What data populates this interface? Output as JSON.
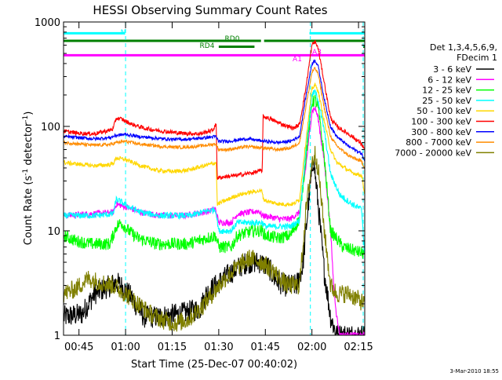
{
  "chart_data": {
    "type": "line",
    "title": "HESSI Observing Summary Count Rates",
    "xlabel": "Start Time (25-Dec-07 00:40:02)",
    "ylabel": "Count Rate (s⁻¹ detector⁻¹)",
    "ylabel_main": "Count Rate (s",
    "ylabel_sup1": "-1",
    "ylabel_mid": " detector",
    "ylabel_sup2": "-1",
    "ylabel_end": ")",
    "y_scale": "log",
    "xlim": [
      40.03,
      137.0
    ],
    "ylim": [
      1,
      1000
    ],
    "x_ticks": [
      {
        "v": 45,
        "label": "00:45"
      },
      {
        "v": 60,
        "label": "01:00"
      },
      {
        "v": 75,
        "label": "01:15"
      },
      {
        "v": 90,
        "label": "01:30"
      },
      {
        "v": 105,
        "label": "01:45"
      },
      {
        "v": 120,
        "label": "02:00"
      },
      {
        "v": 135,
        "label": "02:15"
      }
    ],
    "y_ticks": [
      {
        "v": 1,
        "label": "1"
      },
      {
        "v": 10,
        "label": "10"
      },
      {
        "v": 100,
        "label": "100"
      },
      {
        "v": 1000,
        "label": "1000"
      }
    ],
    "legend_header": [
      "Det 1,3,4,5,6,9,",
      "FDecim 1"
    ],
    "legend_placement": "right",
    "footer_date": "3-Mar-2010 18:55",
    "series": [
      {
        "name": "3 - 6 keV",
        "color": "#000000",
        "noise": 0.22,
        "pts": [
          [
            40.1,
            1.5
          ],
          [
            46,
            1.6
          ],
          [
            50,
            2.5
          ],
          [
            57,
            3.2
          ],
          [
            58.5,
            3
          ],
          [
            62,
            2.3
          ],
          [
            64,
            1.8
          ],
          [
            66,
            1.5
          ],
          [
            70,
            1.5
          ],
          [
            78,
            1.6
          ],
          [
            84,
            1.8
          ],
          [
            86,
            2.5
          ],
          [
            89,
            3
          ],
          [
            94,
            4
          ],
          [
            99,
            5
          ],
          [
            103,
            5
          ],
          [
            106,
            4.5
          ],
          [
            108,
            3.5
          ],
          [
            111,
            3
          ],
          [
            115,
            3
          ],
          [
            117,
            4.5
          ],
          [
            119,
            20
          ],
          [
            120.5,
            50
          ],
          [
            122,
            18
          ],
          [
            124,
            4
          ],
          [
            126,
            1.5
          ],
          [
            128,
            1
          ],
          [
            137,
            1
          ]
        ]
      },
      {
        "name": "6 - 12 keV",
        "color": "#ff00ff",
        "noise": 0.06,
        "pts": [
          [
            40.1,
            14
          ],
          [
            56,
            15
          ],
          [
            57,
            18
          ],
          [
            60,
            17
          ],
          [
            65,
            15
          ],
          [
            71,
            14
          ],
          [
            79,
            14
          ],
          [
            85,
            15
          ],
          [
            89,
            16
          ],
          [
            90,
            12
          ],
          [
            94,
            12
          ],
          [
            96,
            14.5
          ],
          [
            103,
            15.5
          ],
          [
            104,
            14
          ],
          [
            110,
            13
          ],
          [
            113,
            13
          ],
          [
            116,
            15
          ],
          [
            118,
            40
          ],
          [
            120,
            140
          ],
          [
            121,
            150
          ],
          [
            122,
            120
          ],
          [
            124,
            45
          ],
          [
            126,
            10
          ],
          [
            127,
            3
          ],
          [
            128,
            1.5
          ],
          [
            129,
            1
          ],
          [
            137,
            1
          ]
        ]
      },
      {
        "name": "12 - 25 keV",
        "color": "#00ff00",
        "noise": 0.12,
        "pts": [
          [
            40.1,
            9
          ],
          [
            44,
            8
          ],
          [
            49,
            7.5
          ],
          [
            51,
            7.5
          ],
          [
            55,
            7.5
          ],
          [
            57,
            11
          ],
          [
            58.5,
            12
          ],
          [
            61,
            10
          ],
          [
            64,
            8.5
          ],
          [
            70,
            7.5
          ],
          [
            80,
            7.5
          ],
          [
            86,
            8.5
          ],
          [
            89,
            9
          ],
          [
            90,
            7
          ],
          [
            94,
            7
          ],
          [
            96,
            9
          ],
          [
            101,
            10
          ],
          [
            104,
            10
          ],
          [
            105,
            9
          ],
          [
            109,
            8.5
          ],
          [
            113,
            9
          ],
          [
            116,
            13
          ],
          [
            118,
            50
          ],
          [
            120,
            170
          ],
          [
            121,
            180
          ],
          [
            122,
            150
          ],
          [
            124,
            50
          ],
          [
            126,
            10
          ],
          [
            130,
            7
          ],
          [
            137,
            6
          ]
        ]
      },
      {
        "name": "25 - 50 keV",
        "color": "#00ffff",
        "noise": 0.06,
        "pts": [
          [
            40.1,
            14
          ],
          [
            44,
            14
          ],
          [
            50,
            14
          ],
          [
            56,
            14.5
          ],
          [
            57,
            20
          ],
          [
            58.5,
            19
          ],
          [
            61,
            17
          ],
          [
            65,
            15
          ],
          [
            71,
            14
          ],
          [
            81,
            14
          ],
          [
            86,
            15.5
          ],
          [
            89,
            16
          ],
          [
            90,
            10
          ],
          [
            94,
            10
          ],
          [
            96,
            12
          ],
          [
            101,
            12
          ],
          [
            104,
            12
          ],
          [
            105,
            11
          ],
          [
            109,
            11
          ],
          [
            113,
            11
          ],
          [
            116,
            12.5
          ],
          [
            118,
            60
          ],
          [
            120,
            200
          ],
          [
            121,
            215
          ],
          [
            122,
            180
          ],
          [
            124,
            90
          ],
          [
            126,
            35
          ],
          [
            129,
            22
          ],
          [
            133,
            18
          ],
          [
            136,
            16
          ],
          [
            137,
            6
          ]
        ]
      },
      {
        "name": "50 - 100 keV",
        "color": "#ffd700",
        "noise": 0.04,
        "pts": [
          [
            40.1,
            45
          ],
          [
            50,
            42
          ],
          [
            55,
            43
          ],
          [
            56,
            44
          ],
          [
            57,
            50
          ],
          [
            60,
            48
          ],
          [
            65,
            42
          ],
          [
            70,
            38
          ],
          [
            75,
            37
          ],
          [
            80,
            38
          ],
          [
            84,
            41
          ],
          [
            88,
            44
          ],
          [
            89.2,
            45
          ],
          [
            89.5,
            18
          ],
          [
            93,
            20
          ],
          [
            96,
            22
          ],
          [
            102,
            24
          ],
          [
            104,
            24
          ],
          [
            104.4,
            20
          ],
          [
            106,
            19
          ],
          [
            110,
            18
          ],
          [
            114,
            18
          ],
          [
            116,
            20
          ],
          [
            118,
            70
          ],
          [
            120,
            230
          ],
          [
            121,
            250
          ],
          [
            122,
            220
          ],
          [
            124,
            110
          ],
          [
            126,
            60
          ],
          [
            128,
            45
          ],
          [
            133,
            36
          ],
          [
            136,
            34
          ],
          [
            136.5,
            28
          ],
          [
            137,
            22
          ]
        ]
      },
      {
        "name": "100 - 300 keV",
        "color": "#ff0000",
        "noise": 0.04,
        "pts": [
          [
            40.1,
            90
          ],
          [
            45,
            86
          ],
          [
            50,
            85
          ],
          [
            55,
            92
          ],
          [
            56,
            95
          ],
          [
            57,
            120
          ],
          [
            58.5,
            118
          ],
          [
            62,
            105
          ],
          [
            66,
            96
          ],
          [
            72,
            90
          ],
          [
            78,
            86
          ],
          [
            84,
            85
          ],
          [
            88,
            92
          ],
          [
            89.2,
            105
          ],
          [
            89.5,
            32
          ],
          [
            92,
            33
          ],
          [
            96,
            34
          ],
          [
            101,
            36
          ],
          [
            104,
            38
          ],
          [
            104.3,
            125
          ],
          [
            106,
            120
          ],
          [
            110,
            106
          ],
          [
            114,
            96
          ],
          [
            116,
            104
          ],
          [
            118,
            230
          ],
          [
            120,
            600
          ],
          [
            121,
            650
          ],
          [
            122,
            560
          ],
          [
            124,
            260
          ],
          [
            126,
            120
          ],
          [
            128,
            100
          ],
          [
            133,
            80
          ],
          [
            136,
            68
          ],
          [
            137,
            60
          ]
        ]
      },
      {
        "name": "300 - 800 keV",
        "color": "#0000ff",
        "noise": 0.03,
        "pts": [
          [
            40.1,
            80
          ],
          [
            45,
            78
          ],
          [
            50,
            76
          ],
          [
            55,
            78
          ],
          [
            57,
            82
          ],
          [
            60,
            84
          ],
          [
            64,
            80
          ],
          [
            68,
            78
          ],
          [
            72,
            76
          ],
          [
            78,
            75
          ],
          [
            82,
            76
          ],
          [
            86,
            78
          ],
          [
            89,
            80
          ],
          [
            90,
            72
          ],
          [
            93,
            72
          ],
          [
            96,
            74
          ],
          [
            99,
            76
          ],
          [
            102,
            74
          ],
          [
            105,
            72
          ],
          [
            109,
            70
          ],
          [
            113,
            72
          ],
          [
            116,
            80
          ],
          [
            118,
            190
          ],
          [
            120,
            400
          ],
          [
            121,
            430
          ],
          [
            122,
            380
          ],
          [
            124,
            180
          ],
          [
            126,
            100
          ],
          [
            128,
            80
          ],
          [
            132,
            64
          ],
          [
            136,
            55
          ],
          [
            137,
            46
          ]
        ]
      },
      {
        "name": "800 - 7000 keV",
        "color": "#ff8c00",
        "noise": 0.03,
        "pts": [
          [
            40.1,
            70
          ],
          [
            45,
            68
          ],
          [
            50,
            66
          ],
          [
            55,
            67
          ],
          [
            57,
            70
          ],
          [
            60,
            72
          ],
          [
            64,
            68
          ],
          [
            68,
            66
          ],
          [
            72,
            64
          ],
          [
            78,
            63
          ],
          [
            82,
            64
          ],
          [
            86,
            66
          ],
          [
            89,
            68
          ],
          [
            90,
            60
          ],
          [
            93,
            60
          ],
          [
            96,
            62
          ],
          [
            99,
            64
          ],
          [
            102,
            63
          ],
          [
            105,
            62
          ],
          [
            109,
            60
          ],
          [
            113,
            62
          ],
          [
            116,
            70
          ],
          [
            118,
            150
          ],
          [
            120,
            330
          ],
          [
            121,
            360
          ],
          [
            122,
            320
          ],
          [
            124,
            150
          ],
          [
            126,
            80
          ],
          [
            128,
            65
          ],
          [
            132,
            52
          ],
          [
            136,
            46
          ],
          [
            137,
            40
          ]
        ]
      },
      {
        "name": "7000 - 20000 keV",
        "color": "#808000",
        "noise": 0.18,
        "pts": [
          [
            40.1,
            2.5
          ],
          [
            44,
            2.8
          ],
          [
            48,
            3.5
          ],
          [
            52,
            3.2
          ],
          [
            56,
            3
          ],
          [
            60,
            2.5
          ],
          [
            64,
            2
          ],
          [
            68,
            1.6
          ],
          [
            72,
            1.4
          ],
          [
            76,
            1.3
          ],
          [
            80,
            1.4
          ],
          [
            84,
            1.8
          ],
          [
            88,
            2.5
          ],
          [
            92,
            3.5
          ],
          [
            96,
            4.5
          ],
          [
            100,
            5.5
          ],
          [
            104,
            5
          ],
          [
            108,
            4
          ],
          [
            112,
            3
          ],
          [
            116,
            3
          ],
          [
            118,
            15
          ],
          [
            120,
            45
          ],
          [
            121,
            55
          ],
          [
            122,
            40
          ],
          [
            124,
            10
          ],
          [
            126,
            3
          ],
          [
            128,
            2.5
          ],
          [
            132,
            2.5
          ],
          [
            137,
            2
          ]
        ]
      }
    ],
    "flag_bars": [
      {
        "label": "N",
        "color": "#00ffff",
        "y": 780,
        "segments": [
          [
            40.1,
            59.8
          ],
          [
            119.2,
            137
          ]
        ]
      },
      {
        "label": "RD0",
        "color": "#008000",
        "y": 660,
        "segments": [
          [
            40.1,
            103.6
          ],
          [
            104.6,
            137
          ]
        ]
      },
      {
        "label": "RD4",
        "color": "#008000",
        "y": 580,
        "segments": [
          [
            90,
            101.5
          ],
          [
            136.5,
            137
          ]
        ]
      },
      {
        "label": "A1",
        "color": "#ff00ff",
        "y": 480,
        "segments": [
          [
            40.1,
            137
          ]
        ]
      },
      {
        "label": "A3",
        "color": "#ff00ff",
        "y": 560,
        "segments": []
      }
    ],
    "vertical_markers": [
      {
        "color": "#00ffff",
        "x": 60
      },
      {
        "color": "#00ffff",
        "x": 119.5
      },
      {
        "color": "#00ffff",
        "x": 136.5
      }
    ]
  }
}
